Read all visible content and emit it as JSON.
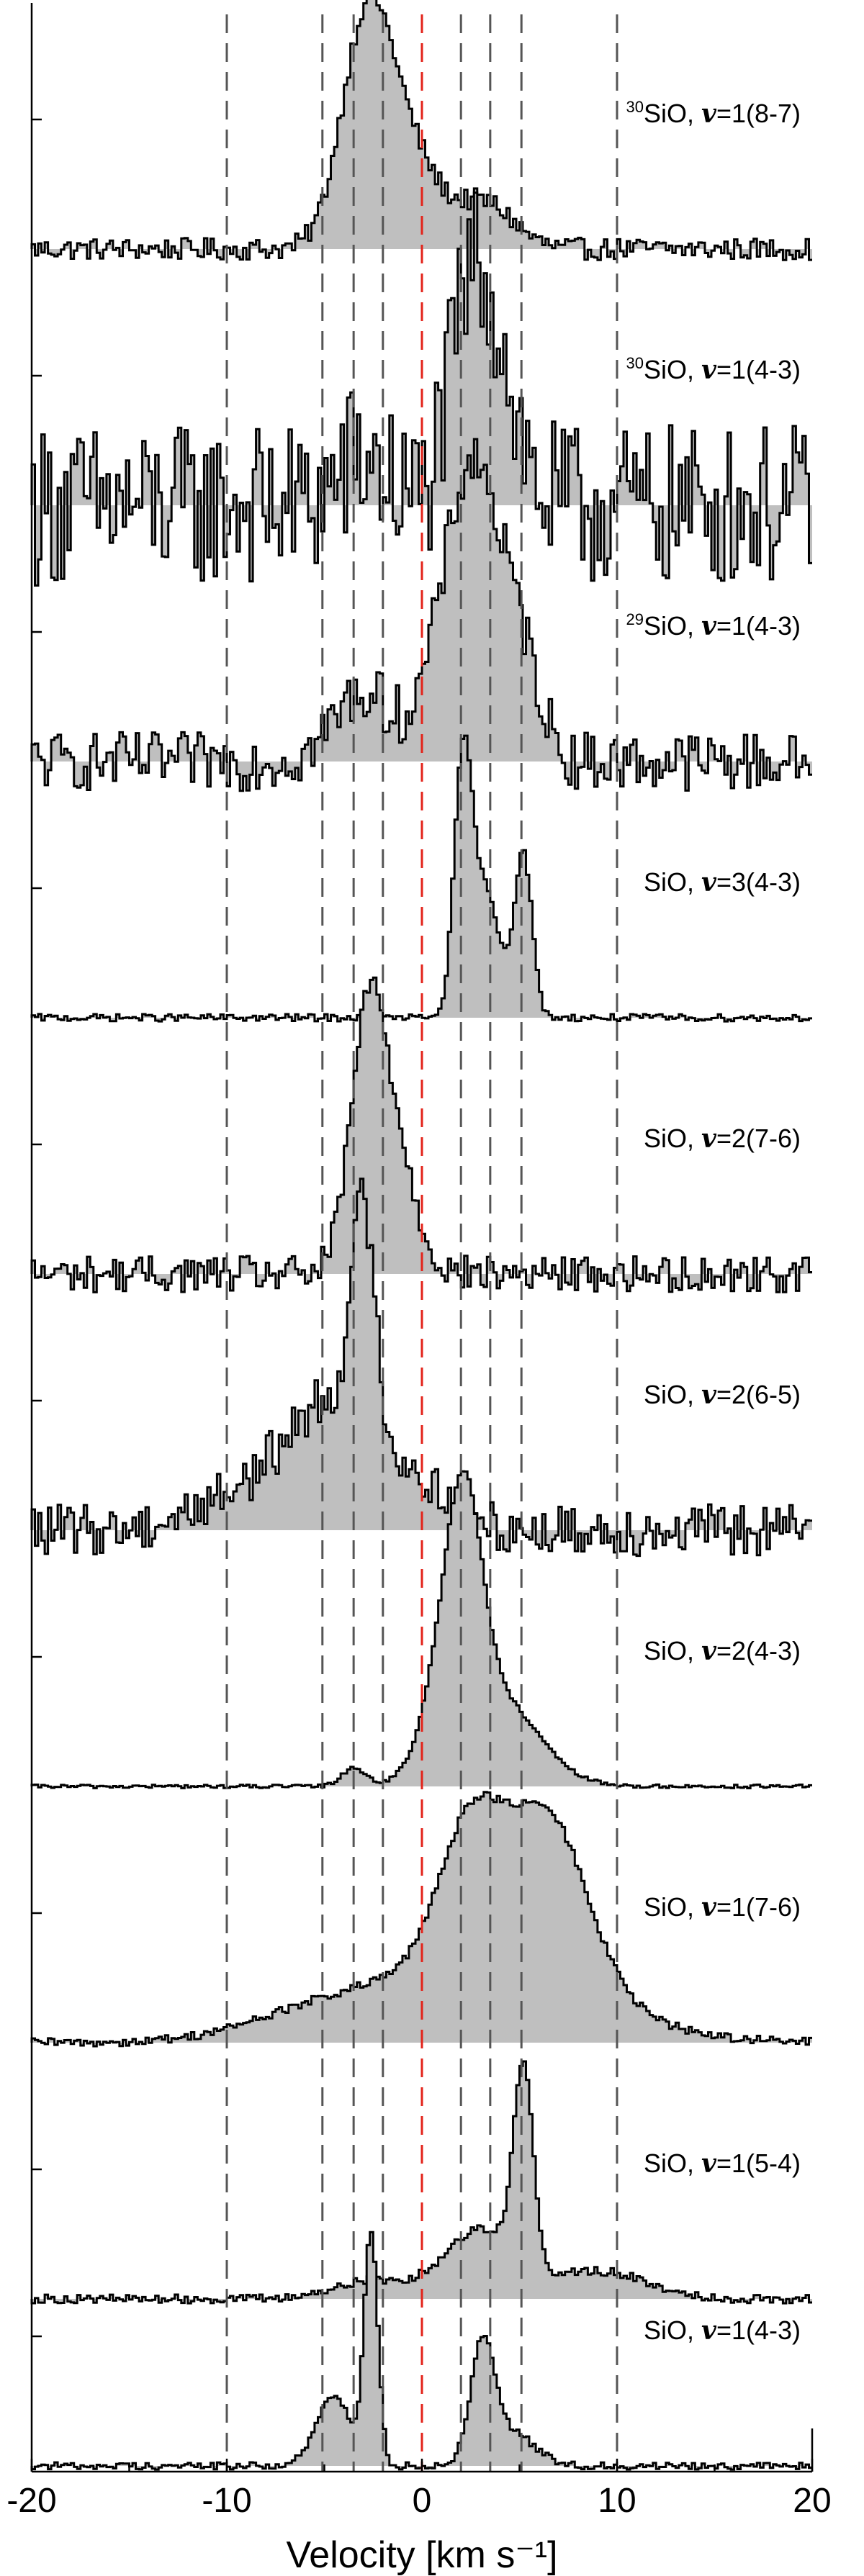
{
  "chart_data": {
    "type": "line",
    "style": "filled step spectra, stacked panels",
    "xlabel": "Velocity [km s⁻¹]",
    "xlim": [
      -20,
      20
    ],
    "x_ticks": [
      "-20",
      "-10",
      "0",
      "10",
      "20"
    ],
    "vertical_lines": {
      "gray_dashed": [
        -10,
        -5.1,
        -3.5,
        -2,
        2,
        3.5,
        5.1,
        10
      ],
      "red_dashed": [
        0
      ]
    },
    "colors": {
      "fill": "#bfbfbf",
      "line": "#000000",
      "gray_lines": "#555555",
      "red_line": "#e3231a"
    },
    "panels": [
      {
        "iso": "30",
        "molecule": "SiO, ",
        "v": "v",
        "rest": "=1(8-7)",
        "noise": 0.03,
        "peaks": [
          {
            "c": -2.8,
            "a": 1.0,
            "w": 1.3
          },
          {
            "c": -0.5,
            "a": 0.35,
            "w": 1.4
          },
          {
            "c": 3.2,
            "a": 0.2,
            "w": 1.5
          }
        ]
      },
      {
        "iso": "30",
        "molecule": "SiO, ",
        "v": "v",
        "rest": "=1(4-3)",
        "noise": 0.22,
        "peaks": [
          {
            "c": 2.6,
            "a": 0.95,
            "w": 1.1
          },
          {
            "c": 4.2,
            "a": 0.35,
            "w": 1.0
          },
          {
            "c": -3.0,
            "a": 0.2,
            "w": 1.2
          }
        ]
      },
      {
        "iso": "29",
        "molecule": "SiO, ",
        "v": "v",
        "rest": "=1(4-3)",
        "noise": 0.08,
        "peaks": [
          {
            "c": 3.0,
            "a": 1.0,
            "w": 1.3
          },
          {
            "c": 1.5,
            "a": 0.5,
            "w": 1.3
          },
          {
            "c": 5.2,
            "a": 0.35,
            "w": 1.0
          },
          {
            "c": -3.0,
            "a": 0.3,
            "w": 1.5
          }
        ]
      },
      {
        "iso": "",
        "molecule": "SiO, ",
        "v": "v",
        "rest": "=3(4-3)",
        "noise": 0.01,
        "peaks": [
          {
            "c": 2.1,
            "a": 1.0,
            "w": 0.45
          },
          {
            "c": 3.2,
            "a": 0.55,
            "w": 0.8
          },
          {
            "c": 5.2,
            "a": 0.7,
            "w": 0.45
          }
        ]
      },
      {
        "iso": "",
        "molecule": "SiO, ",
        "v": "v",
        "rest": "=2(7-6)",
        "noise": 0.05,
        "peaks": [
          {
            "c": -2.8,
            "a": 1.0,
            "w": 0.9
          },
          {
            "c": -1.4,
            "a": 0.5,
            "w": 1.1
          }
        ]
      },
      {
        "iso": "",
        "molecule": "SiO, ",
        "v": "v",
        "rest": "=2(6-5)",
        "noise": 0.07,
        "peaks": [
          {
            "c": -3.0,
            "a": 0.95,
            "w": 0.6
          },
          {
            "c": -4.5,
            "a": 0.45,
            "w": 2.0
          },
          {
            "c": -8.0,
            "a": 0.2,
            "w": 3.0
          },
          {
            "c": -0.5,
            "a": 0.2,
            "w": 2.0
          }
        ]
      },
      {
        "iso": "",
        "molecule": "SiO, ",
        "v": "v",
        "rest": "=2(4-3)",
        "noise": 0.005,
        "peaks": [
          {
            "c": 2.2,
            "a": 0.9,
            "w": 0.9
          },
          {
            "c": 3.6,
            "a": 0.4,
            "w": 2.2
          },
          {
            "c": 1.0,
            "a": 0.3,
            "w": 1.0
          },
          {
            "c": -3.5,
            "a": 0.08,
            "w": 0.6
          }
        ]
      },
      {
        "iso": "",
        "molecule": "SiO, ",
        "v": "v",
        "rest": "=1(7-6)",
        "noise": 0.012,
        "peaks": [
          {
            "c": 2.5,
            "a": 0.6,
            "w": 1.6
          },
          {
            "c": 6.5,
            "a": 0.7,
            "w": 2.0
          },
          {
            "c": 3.0,
            "a": 0.35,
            "w": 5.5
          },
          {
            "c": -6.0,
            "a": 0.08,
            "w": 3.5
          }
        ]
      },
      {
        "iso": "",
        "molecule": "SiO, ",
        "v": "v",
        "rest": "=1(5-4)",
        "noise": 0.012,
        "peaks": [
          {
            "c": 5.2,
            "a": 0.85,
            "w": 0.5
          },
          {
            "c": 3.0,
            "a": 0.3,
            "w": 1.8
          },
          {
            "c": 9.0,
            "a": 0.12,
            "w": 2.5
          },
          {
            "c": -2.5,
            "a": 0.08,
            "w": 2.0
          }
        ]
      },
      {
        "iso": "",
        "molecule": "SiO, ",
        "v": "v",
        "rest": "=1(4-3)",
        "noise": 0.01,
        "peaks": [
          {
            "c": -2.6,
            "a": 1.0,
            "w": 0.35
          },
          {
            "c": -4.5,
            "a": 0.3,
            "w": 0.9
          },
          {
            "c": 3.1,
            "a": 0.5,
            "w": 0.6
          },
          {
            "c": 4.5,
            "a": 0.15,
            "w": 1.2
          }
        ]
      }
    ]
  }
}
